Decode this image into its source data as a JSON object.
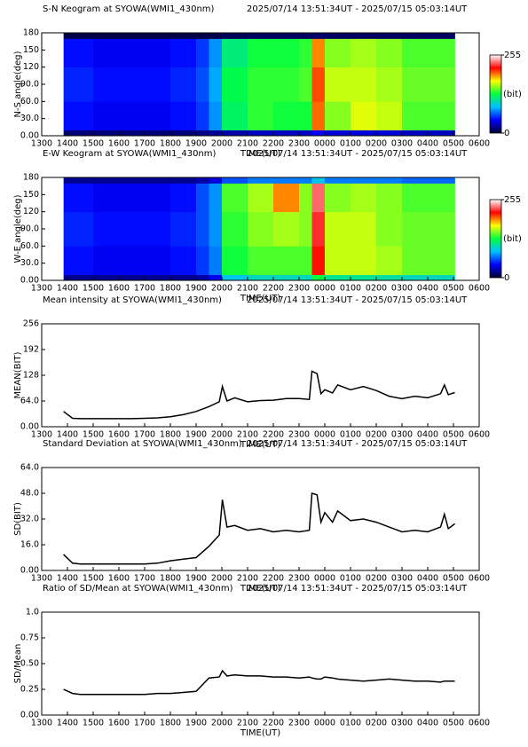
{
  "chart_data": [
    {
      "type": "heatmap",
      "title": "S-N Keogram at SYOWA(WMI1_430nm)",
      "subtitle": "2025/07/14 13:51:34UT - 2025/07/15 05:03:14UT",
      "xlabel": "TIME(UT)",
      "ylabel": "N-S angle(deg)",
      "xlim": [
        13,
        30
      ],
      "xticks": [
        {
          "value": 13,
          "label": "1300"
        },
        {
          "value": 14,
          "label": "1400"
        },
        {
          "value": 15,
          "label": "1500"
        },
        {
          "value": 16,
          "label": "1600"
        },
        {
          "value": 17,
          "label": "1700"
        },
        {
          "value": 18,
          "label": "1800"
        },
        {
          "value": 19,
          "label": "1900"
        },
        {
          "value": 20,
          "label": "2000"
        },
        {
          "value": 21,
          "label": "2100"
        },
        {
          "value": 22,
          "label": "2200"
        },
        {
          "value": 23,
          "label": "2300"
        },
        {
          "value": 24,
          "label": "0000"
        },
        {
          "value": 25,
          "label": "0100"
        },
        {
          "value": 26,
          "label": "0200"
        },
        {
          "value": 27,
          "label": "0300"
        },
        {
          "value": 28,
          "label": "0400"
        },
        {
          "value": 29,
          "label": "0500"
        },
        {
          "value": 30,
          "label": "0600"
        }
      ],
      "ylim": [
        0,
        180
      ],
      "yticks": [
        {
          "value": 0,
          "label": "0.00"
        },
        {
          "value": 30,
          "label": "30.0"
        },
        {
          "value": 60,
          "label": "60.0"
        },
        {
          "value": 90,
          "label": "90.0"
        },
        120,
        150,
        180
      ],
      "xbins": [
        13.85,
        15,
        16,
        17,
        18,
        19,
        19.5,
        20,
        21,
        22,
        23,
        23.5,
        24,
        25,
        26,
        27,
        28,
        29.05
      ],
      "ybins": [
        0,
        10,
        60,
        120,
        170,
        180
      ],
      "z": [
        [
          15,
          15,
          15,
          15,
          15,
          18,
          20,
          25,
          30,
          30,
          30,
          40,
          35,
          35,
          35,
          30,
          30
        ],
        [
          45,
          40,
          40,
          40,
          45,
          55,
          75,
          120,
          135,
          130,
          130,
          195,
          150,
          165,
          160,
          140,
          140
        ],
        [
          50,
          45,
          45,
          45,
          50,
          60,
          80,
          125,
          135,
          135,
          140,
          200,
          160,
          160,
          155,
          145,
          145
        ],
        [
          45,
          40,
          40,
          40,
          45,
          55,
          75,
          115,
          130,
          130,
          135,
          190,
          150,
          155,
          150,
          140,
          140
        ],
        [
          5,
          5,
          5,
          5,
          5,
          5,
          5,
          8,
          10,
          10,
          10,
          12,
          10,
          10,
          10,
          10,
          10
        ]
      ],
      "clim": [
        0,
        255
      ],
      "cticks": [
        0,
        255
      ],
      "clabel": "(bit)",
      "colorscale": [
        "#000030",
        "#0000ff",
        "#00c0ff",
        "#00ff40",
        "#ffff00",
        "#ff0000",
        "#ffffff"
      ]
    },
    {
      "type": "heatmap",
      "title": "E-W Keogram at SYOWA(WMI1_430nm)",
      "subtitle": "2025/07/14 13:51:34UT - 2025/07/15 05:03:14UT",
      "xlabel": "TIME(UT)",
      "ylabel": "W-E angle(deg)",
      "xlim": [
        13,
        30
      ],
      "xticks": [
        {
          "value": 13,
          "label": "1300"
        },
        {
          "value": 14,
          "label": "1400"
        },
        {
          "value": 15,
          "label": "1500"
        },
        {
          "value": 16,
          "label": "1600"
        },
        {
          "value": 17,
          "label": "1700"
        },
        {
          "value": 18,
          "label": "1800"
        },
        {
          "value": 19,
          "label": "1900"
        },
        {
          "value": 20,
          "label": "2000"
        },
        {
          "value": 21,
          "label": "2100"
        },
        {
          "value": 22,
          "label": "2200"
        },
        {
          "value": 23,
          "label": "2300"
        },
        {
          "value": 24,
          "label": "0000"
        },
        {
          "value": 25,
          "label": "0100"
        },
        {
          "value": 26,
          "label": "0200"
        },
        {
          "value": 27,
          "label": "0300"
        },
        {
          "value": 28,
          "label": "0400"
        },
        {
          "value": 29,
          "label": "0500"
        },
        {
          "value": 30,
          "label": "0600"
        }
      ],
      "ylim": [
        0,
        180
      ],
      "yticks": [
        {
          "value": 0,
          "label": "0.00"
        },
        {
          "value": 30,
          "label": "30.0"
        },
        {
          "value": 60,
          "label": "60.0"
        },
        {
          "value": 90,
          "label": "90.0"
        },
        120,
        150,
        180
      ],
      "xbins": [
        13.85,
        15,
        16,
        17,
        18,
        19,
        19.5,
        20,
        21,
        22,
        23,
        23.5,
        24,
        25,
        26,
        27,
        28,
        29.05
      ],
      "ybins": [
        0,
        10,
        60,
        120,
        170,
        180
      ],
      "z": [
        [
          20,
          20,
          20,
          20,
          20,
          25,
          40,
          90,
          100,
          100,
          100,
          130,
          110,
          110,
          105,
          100,
          100
        ],
        [
          45,
          40,
          40,
          40,
          45,
          55,
          70,
          130,
          140,
          140,
          140,
          210,
          160,
          160,
          155,
          145,
          145
        ],
        [
          50,
          45,
          45,
          45,
          50,
          60,
          75,
          135,
          150,
          155,
          150,
          220,
          160,
          160,
          150,
          145,
          145
        ],
        [
          45,
          40,
          40,
          40,
          45,
          60,
          75,
          140,
          155,
          190,
          150,
          230,
          150,
          155,
          150,
          140,
          140
        ],
        [
          20,
          20,
          20,
          20,
          20,
          25,
          35,
          60,
          70,
          70,
          70,
          90,
          70,
          70,
          70,
          65,
          65
        ]
      ],
      "clim": [
        0,
        255
      ],
      "cticks": [
        0,
        255
      ],
      "clabel": "(bit)",
      "colorscale": [
        "#000030",
        "#0000ff",
        "#00c0ff",
        "#00ff40",
        "#ffff00",
        "#ff0000",
        "#ffffff"
      ]
    },
    {
      "type": "line",
      "title": "Mean intensity at SYOWA(WMI1_430nm)",
      "subtitle": "2025/07/14 13:51:34UT - 2025/07/15 05:03:14UT",
      "xlabel": "TIME(UT)",
      "ylabel": "MEAN(BIT)",
      "xlim": [
        13,
        30
      ],
      "xticks": [
        {
          "value": 13,
          "label": "1300"
        },
        {
          "value": 14,
          "label": "1400"
        },
        {
          "value": 15,
          "label": "1500"
        },
        {
          "value": 16,
          "label": "1600"
        },
        {
          "value": 17,
          "label": "1700"
        },
        {
          "value": 18,
          "label": "1800"
        },
        {
          "value": 19,
          "label": "1900"
        },
        {
          "value": 20,
          "label": "2000"
        },
        {
          "value": 21,
          "label": "2100"
        },
        {
          "value": 22,
          "label": "2200"
        },
        {
          "value": 23,
          "label": "2300"
        },
        {
          "value": 24,
          "label": "0000"
        },
        {
          "value": 25,
          "label": "0100"
        },
        {
          "value": 26,
          "label": "0200"
        },
        {
          "value": 27,
          "label": "0300"
        },
        {
          "value": 28,
          "label": "0400"
        },
        {
          "value": 29,
          "label": "0500"
        },
        {
          "value": 30,
          "label": "0600"
        }
      ],
      "ylim": [
        0,
        256
      ],
      "yticks": [
        {
          "value": 0,
          "label": "0.00"
        },
        {
          "value": 64,
          "label": "64.0"
        },
        128,
        192,
        256
      ],
      "x": [
        13.85,
        14.2,
        14.5,
        15,
        15.5,
        16,
        16.5,
        17,
        17.5,
        18,
        18.5,
        19,
        19.5,
        19.9,
        20.02,
        20.2,
        20.5,
        21,
        21.5,
        22,
        22.5,
        23,
        23.4,
        23.5,
        23.7,
        23.85,
        24,
        24.3,
        24.5,
        25,
        25.5,
        26,
        26.5,
        27,
        27.5,
        28,
        28.5,
        28.65,
        28.8,
        29.05
      ],
      "values": [
        38,
        21,
        20,
        20,
        20,
        20,
        20,
        21,
        22,
        25,
        30,
        38,
        50,
        62,
        100,
        64,
        72,
        62,
        65,
        66,
        70,
        70,
        68,
        138,
        132,
        82,
        92,
        84,
        104,
        92,
        100,
        90,
        76,
        70,
        76,
        72,
        82,
        104,
        80,
        85
      ],
      "color": "#000000"
    },
    {
      "type": "line",
      "title": "Standard Deviation at SYOWA(WMI1_430nm)",
      "subtitle": "2025/07/14 13:51:34UT - 2025/07/15 05:03:14UT",
      "xlabel": "TIME(UT)",
      "ylabel": "SD(BIT)",
      "xlim": [
        13,
        30
      ],
      "xticks": [
        {
          "value": 13,
          "label": "1300"
        },
        {
          "value": 14,
          "label": "1400"
        },
        {
          "value": 15,
          "label": "1500"
        },
        {
          "value": 16,
          "label": "1600"
        },
        {
          "value": 17,
          "label": "1700"
        },
        {
          "value": 18,
          "label": "1800"
        },
        {
          "value": 19,
          "label": "1900"
        },
        {
          "value": 20,
          "label": "2000"
        },
        {
          "value": 21,
          "label": "2100"
        },
        {
          "value": 22,
          "label": "2200"
        },
        {
          "value": 23,
          "label": "2300"
        },
        {
          "value": 24,
          "label": "0000"
        },
        {
          "value": 25,
          "label": "0100"
        },
        {
          "value": 26,
          "label": "0200"
        },
        {
          "value": 27,
          "label": "0300"
        },
        {
          "value": 28,
          "label": "0400"
        },
        {
          "value": 29,
          "label": "0500"
        },
        {
          "value": 30,
          "label": "0600"
        }
      ],
      "ylim": [
        0,
        64
      ],
      "yticks": [
        {
          "value": 0,
          "label": "0.00"
        },
        {
          "value": 16,
          "label": "16.0"
        },
        {
          "value": 32,
          "label": "32.0"
        },
        {
          "value": 48,
          "label": "48.0"
        },
        {
          "value": 64,
          "label": "64.0"
        }
      ],
      "x": [
        13.85,
        14.2,
        14.5,
        15,
        15.5,
        16,
        16.5,
        17,
        17.5,
        18,
        18.5,
        19,
        19.5,
        19.9,
        20.02,
        20.2,
        20.5,
        21,
        21.5,
        22,
        22.5,
        23,
        23.4,
        23.5,
        23.7,
        23.85,
        24,
        24.3,
        24.5,
        25,
        25.5,
        26,
        26.5,
        27,
        27.5,
        28,
        28.5,
        28.65,
        28.8,
        29.05
      ],
      "values": [
        10,
        4.5,
        4,
        4,
        4,
        4,
        4,
        4,
        4.5,
        6,
        7,
        8,
        15,
        22,
        44,
        27,
        28,
        25,
        26,
        24,
        25,
        24,
        25,
        48,
        47,
        30,
        36,
        30,
        37,
        31,
        32,
        30,
        27,
        24,
        25,
        24,
        27,
        35,
        26,
        29
      ],
      "color": "#000000"
    },
    {
      "type": "line",
      "title": "Ratio of SD/Mean at SYOWA(WMI1_430nm)",
      "subtitle": "2025/07/14 13:51:34UT - 2025/07/15 05:03:14UT",
      "xlabel": "TIME(UT)",
      "ylabel": "SD/Mean",
      "xlim": [
        13,
        30
      ],
      "xticks": [
        {
          "value": 13,
          "label": "1300"
        },
        {
          "value": 14,
          "label": "1400"
        },
        {
          "value": 15,
          "label": "1500"
        },
        {
          "value": 16,
          "label": "1600"
        },
        {
          "value": 17,
          "label": "1700"
        },
        {
          "value": 18,
          "label": "1800"
        },
        {
          "value": 19,
          "label": "1900"
        },
        {
          "value": 20,
          "label": "2000"
        },
        {
          "value": 21,
          "label": "2100"
        },
        {
          "value": 22,
          "label": "2200"
        },
        {
          "value": 23,
          "label": "2300"
        },
        {
          "value": 24,
          "label": "0000"
        },
        {
          "value": 25,
          "label": "0100"
        },
        {
          "value": 26,
          "label": "0200"
        },
        {
          "value": 27,
          "label": "0300"
        },
        {
          "value": 28,
          "label": "0400"
        },
        {
          "value": 29,
          "label": "0500"
        },
        {
          "value": 30,
          "label": "0600"
        }
      ],
      "ylim": [
        0,
        1
      ],
      "yticks": [
        {
          "value": 0,
          "label": "0.00"
        },
        0.25,
        {
          "value": 0.5,
          "label": "0.50"
        },
        0.75,
        {
          "value": 1,
          "label": "1.0"
        }
      ],
      "x": [
        13.85,
        14.2,
        14.5,
        15,
        15.5,
        16,
        16.5,
        17,
        17.5,
        18,
        18.5,
        19,
        19.5,
        19.9,
        20.02,
        20.2,
        20.5,
        21,
        21.5,
        22,
        22.5,
        23,
        23.4,
        23.5,
        23.7,
        23.85,
        24,
        24.3,
        24.5,
        25,
        25.5,
        26,
        26.5,
        27,
        27.5,
        28,
        28.5,
        28.65,
        28.8,
        29.05
      ],
      "values": [
        0.25,
        0.21,
        0.2,
        0.2,
        0.2,
        0.2,
        0.2,
        0.2,
        0.21,
        0.21,
        0.22,
        0.23,
        0.36,
        0.37,
        0.43,
        0.38,
        0.39,
        0.38,
        0.38,
        0.37,
        0.37,
        0.36,
        0.37,
        0.36,
        0.35,
        0.35,
        0.37,
        0.36,
        0.35,
        0.34,
        0.33,
        0.34,
        0.35,
        0.34,
        0.33,
        0.33,
        0.32,
        0.33,
        0.33,
        0.33
      ],
      "color": "#000000"
    }
  ]
}
